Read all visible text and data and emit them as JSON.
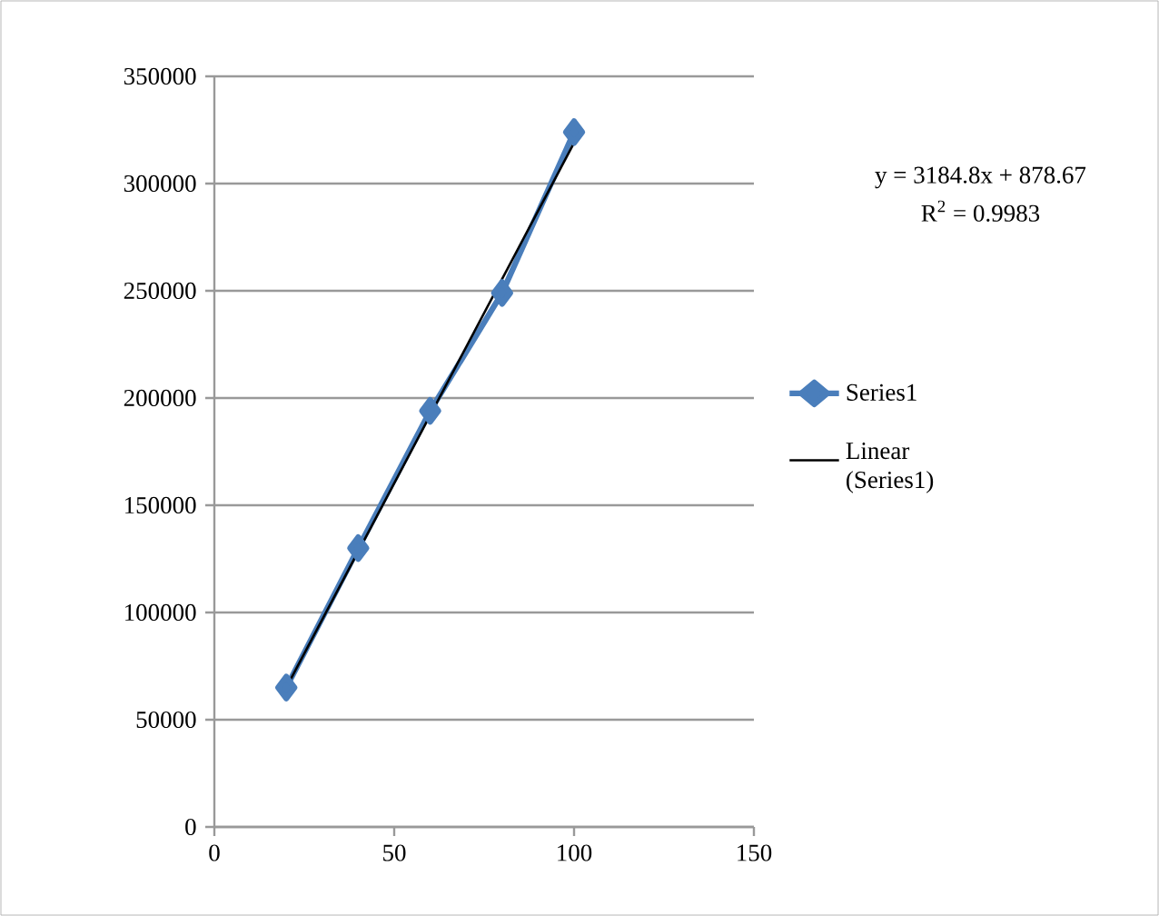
{
  "chart_data": {
    "type": "line",
    "series": [
      {
        "name": "Series1",
        "color": "#4a7ebb",
        "x": [
          20,
          40,
          60,
          80,
          100
        ],
        "values": [
          65000,
          130000,
          194000,
          249000,
          324000
        ],
        "marker": "diamond",
        "line_style": "solid"
      },
      {
        "name": "Linear (Series1)",
        "color": "#000000",
        "type": "line",
        "x": [
          20,
          100
        ],
        "values": [
          65000,
          319000
        ],
        "marker": "none",
        "line_style": "solid"
      }
    ],
    "xlim": [
      0,
      150
    ],
    "xticks": [
      0,
      50,
      100,
      150
    ],
    "ylim": [
      0,
      350000
    ],
    "yticks": [
      0,
      50000,
      100000,
      150000,
      200000,
      250000,
      300000,
      350000
    ],
    "grid": "y",
    "legend": "right",
    "annotations": [
      "y = 3184.8x + 878.67",
      "R$^{2}$ = 0.9983"
    ]
  }
}
